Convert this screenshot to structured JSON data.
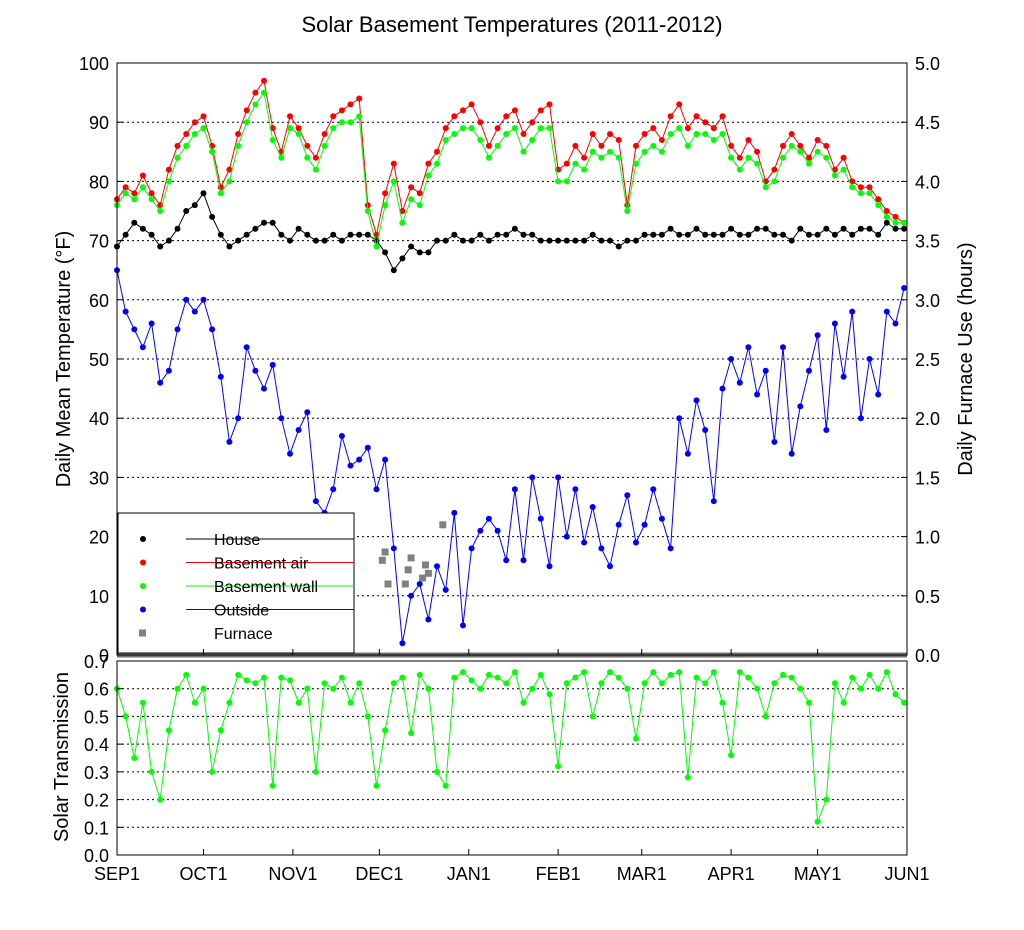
{
  "chart_data": [
    {
      "type": "line",
      "title": "Solar Basement Temperatures (2011-2012)",
      "ylabel": "Daily Mean Temperature (°F)",
      "y2label": "Daily Furnace Use (hours)",
      "ylim": [
        0,
        100
      ],
      "y2lim": [
        0.0,
        5.0
      ],
      "yticks": [
        "0",
        "10",
        "20",
        "30",
        "40",
        "50",
        "60",
        "70",
        "80",
        "90",
        "100"
      ],
      "y2ticks": [
        "0.0",
        "0.5",
        "1.0",
        "1.5",
        "2.0",
        "2.5",
        "3.0",
        "3.5",
        "4.0",
        "4.5",
        "5.0"
      ],
      "xlim_days": [
        0,
        274
      ],
      "grid": true,
      "legend_position": "bottom-left",
      "legend": [
        {
          "name": "House",
          "color": "#000000"
        },
        {
          "name": "Basement air",
          "color": "#ff0000"
        },
        {
          "name": "Basement wall",
          "color": "#00ff00"
        },
        {
          "name": "Outside",
          "color": "#0000ff"
        },
        {
          "name": "Furnace",
          "color": "#808080"
        }
      ],
      "series": [
        {
          "name": "House",
          "color": "#000000",
          "x": [
            0,
            3,
            6,
            9,
            12,
            15,
            18,
            21,
            24,
            27,
            30,
            33,
            36,
            39,
            42,
            45,
            48,
            51,
            54,
            57,
            60,
            63,
            66,
            69,
            72,
            75,
            78,
            81,
            84,
            87,
            90,
            93,
            96,
            99,
            102,
            105,
            108,
            111,
            114,
            117,
            120,
            123,
            126,
            129,
            132,
            135,
            138,
            141,
            144,
            147,
            150,
            153,
            156,
            159,
            162,
            165,
            168,
            171,
            174,
            177,
            180,
            183,
            186,
            189,
            192,
            195,
            198,
            201,
            204,
            207,
            210,
            213,
            216,
            219,
            222,
            225,
            228,
            231,
            234,
            237,
            240,
            243,
            246,
            249,
            252,
            255,
            258,
            261,
            264,
            267,
            270,
            273
          ],
          "values": [
            69,
            71,
            73,
            72,
            71,
            69,
            70,
            72,
            75,
            76,
            78,
            74,
            71,
            69,
            70,
            71,
            72,
            73,
            73,
            71,
            70,
            72,
            71,
            70,
            70,
            71,
            70,
            71,
            71,
            71,
            70,
            68,
            65,
            67,
            69,
            68,
            68,
            70,
            70,
            71,
            70,
            70,
            71,
            70,
            71,
            71,
            72,
            71,
            71,
            70,
            70,
            70,
            70,
            70,
            70,
            71,
            70,
            70,
            69,
            70,
            70,
            71,
            71,
            71,
            72,
            71,
            71,
            72,
            71,
            71,
            71,
            72,
            71,
            71,
            72,
            72,
            71,
            71,
            70,
            72,
            71,
            71,
            72,
            71,
            72,
            71,
            72,
            72,
            71,
            73,
            72,
            72
          ]
        },
        {
          "name": "Basement air",
          "color": "#ff0000",
          "x": [
            0,
            3,
            6,
            9,
            12,
            15,
            18,
            21,
            24,
            27,
            30,
            33,
            36,
            39,
            42,
            45,
            48,
            51,
            54,
            57,
            60,
            63,
            66,
            69,
            72,
            75,
            78,
            81,
            84,
            87,
            90,
            93,
            96,
            99,
            102,
            105,
            108,
            111,
            114,
            117,
            120,
            123,
            126,
            129,
            132,
            135,
            138,
            141,
            144,
            147,
            150,
            153,
            156,
            159,
            162,
            165,
            168,
            171,
            174,
            177,
            180,
            183,
            186,
            189,
            192,
            195,
            198,
            201,
            204,
            207,
            210,
            213,
            216,
            219,
            222,
            225,
            228,
            231,
            234,
            237,
            240,
            243,
            246,
            249,
            252,
            255,
            258,
            261,
            264,
            267,
            270,
            273
          ],
          "values": [
            77,
            79,
            78,
            81,
            78,
            76,
            82,
            86,
            88,
            90,
            91,
            86,
            79,
            82,
            88,
            92,
            95,
            97,
            89,
            85,
            91,
            89,
            86,
            84,
            88,
            91,
            92,
            93,
            94,
            76,
            71,
            78,
            83,
            75,
            79,
            78,
            83,
            85,
            89,
            91,
            92,
            93,
            90,
            86,
            89,
            91,
            92,
            88,
            90,
            92,
            93,
            82,
            83,
            86,
            84,
            88,
            86,
            88,
            87,
            76,
            86,
            88,
            89,
            87,
            91,
            93,
            89,
            91,
            90,
            89,
            91,
            86,
            84,
            87,
            85,
            80,
            82,
            86,
            88,
            86,
            84,
            87,
            86,
            82,
            84,
            80,
            79,
            79,
            77,
            75,
            74,
            73
          ]
        },
        {
          "name": "Basement wall",
          "color": "#00ff00",
          "x": [
            0,
            3,
            6,
            9,
            12,
            15,
            18,
            21,
            24,
            27,
            30,
            33,
            36,
            39,
            42,
            45,
            48,
            51,
            54,
            57,
            60,
            63,
            66,
            69,
            72,
            75,
            78,
            81,
            84,
            87,
            90,
            93,
            96,
            99,
            102,
            105,
            108,
            111,
            114,
            117,
            120,
            123,
            126,
            129,
            132,
            135,
            138,
            141,
            144,
            147,
            150,
            153,
            156,
            159,
            162,
            165,
            168,
            171,
            174,
            177,
            180,
            183,
            186,
            189,
            192,
            195,
            198,
            201,
            204,
            207,
            210,
            213,
            216,
            219,
            222,
            225,
            228,
            231,
            234,
            237,
            240,
            243,
            246,
            249,
            252,
            255,
            258,
            261,
            264,
            267,
            270,
            273
          ],
          "values": [
            76,
            78,
            77,
            79,
            77,
            75,
            80,
            84,
            86,
            88,
            89,
            85,
            78,
            80,
            86,
            90,
            93,
            95,
            87,
            84,
            89,
            88,
            84,
            82,
            86,
            89,
            90,
            90,
            91,
            75,
            69,
            76,
            80,
            73,
            77,
            76,
            81,
            83,
            87,
            88,
            89,
            89,
            87,
            84,
            86,
            88,
            89,
            85,
            87,
            89,
            89,
            80,
            80,
            83,
            82,
            85,
            84,
            85,
            84,
            75,
            83,
            85,
            86,
            85,
            88,
            89,
            86,
            88,
            88,
            87,
            88,
            84,
            82,
            84,
            83,
            79,
            80,
            84,
            86,
            85,
            83,
            85,
            84,
            81,
            82,
            79,
            78,
            78,
            76,
            74,
            73,
            73
          ]
        },
        {
          "name": "Outside",
          "color": "#0000ff",
          "x": [
            0,
            3,
            6,
            9,
            12,
            15,
            18,
            21,
            24,
            27,
            30,
            33,
            36,
            39,
            42,
            45,
            48,
            51,
            54,
            57,
            60,
            63,
            66,
            69,
            72,
            75,
            78,
            81,
            84,
            87,
            90,
            93,
            96,
            99,
            102,
            105,
            108,
            111,
            114,
            117,
            120,
            123,
            126,
            129,
            132,
            135,
            138,
            141,
            144,
            147,
            150,
            153,
            156,
            159,
            162,
            165,
            168,
            171,
            174,
            177,
            180,
            183,
            186,
            189,
            192,
            195,
            198,
            201,
            204,
            207,
            210,
            213,
            216,
            219,
            222,
            225,
            228,
            231,
            234,
            237,
            240,
            243,
            246,
            249,
            252,
            255,
            258,
            261,
            264,
            267,
            270,
            273
          ],
          "values": [
            65,
            58,
            55,
            52,
            56,
            46,
            48,
            55,
            60,
            58,
            60,
            55,
            47,
            36,
            40,
            52,
            48,
            45,
            49,
            40,
            34,
            38,
            41,
            26,
            24,
            28,
            37,
            32,
            33,
            35,
            28,
            33,
            18,
            2,
            10,
            12,
            6,
            15,
            11,
            24,
            5,
            18,
            21,
            23,
            21,
            16,
            28,
            16,
            30,
            23,
            15,
            30,
            20,
            28,
            19,
            25,
            18,
            15,
            22,
            27,
            19,
            22,
            28,
            23,
            18,
            40,
            34,
            43,
            38,
            26,
            45,
            50,
            46,
            52,
            44,
            48,
            36,
            52,
            34,
            42,
            48,
            54,
            38,
            56,
            47,
            58,
            40,
            50,
            44,
            58,
            56,
            62
          ]
        }
      ],
      "furnace_hours": {
        "x": [
          92,
          93,
          94,
          100,
          101,
          102,
          106,
          107,
          108,
          113
        ],
        "values": [
          0.8,
          0.87,
          0.6,
          0.6,
          0.72,
          0.82,
          0.65,
          0.76,
          0.69,
          1.1
        ]
      }
    },
    {
      "type": "line",
      "ylabel": "Solar Transmission",
      "ylim": [
        0.0,
        0.7
      ],
      "yticks": [
        "0.0",
        "0.1",
        "0.2",
        "0.3",
        "0.4",
        "0.5",
        "0.6",
        "0.7"
      ],
      "xticks": [
        "SEP1",
        "OCT1",
        "NOV1",
        "DEC1",
        "JAN1",
        "FEB1",
        "MAR1",
        "APR1",
        "MAY1",
        "JUN1"
      ],
      "xtick_days": [
        0,
        30,
        61,
        91,
        122,
        153,
        182,
        213,
        243,
        274
      ],
      "grid": true,
      "series": [
        {
          "name": "Solar Transmission",
          "color": "#00ff00",
          "x": [
            0,
            3,
            6,
            9,
            12,
            15,
            18,
            21,
            24,
            27,
            30,
            33,
            36,
            39,
            42,
            45,
            48,
            51,
            54,
            57,
            60,
            63,
            66,
            69,
            72,
            75,
            78,
            81,
            84,
            87,
            90,
            93,
            96,
            99,
            102,
            105,
            108,
            111,
            114,
            117,
            120,
            123,
            126,
            129,
            132,
            135,
            138,
            141,
            144,
            147,
            150,
            153,
            156,
            159,
            162,
            165,
            168,
            171,
            174,
            177,
            180,
            183,
            186,
            189,
            192,
            195,
            198,
            201,
            204,
            207,
            210,
            213,
            216,
            219,
            222,
            225,
            228,
            231,
            234,
            237,
            240,
            243,
            246,
            249,
            252,
            255,
            258,
            261,
            264,
            267,
            270,
            273
          ],
          "values": [
            0.6,
            0.5,
            0.35,
            0.55,
            0.3,
            0.2,
            0.45,
            0.6,
            0.65,
            0.55,
            0.6,
            0.3,
            0.45,
            0.55,
            0.65,
            0.63,
            0.62,
            0.64,
            0.25,
            0.64,
            0.63,
            0.55,
            0.6,
            0.3,
            0.62,
            0.6,
            0.64,
            0.55,
            0.62,
            0.5,
            0.25,
            0.45,
            0.62,
            0.64,
            0.44,
            0.65,
            0.6,
            0.3,
            0.25,
            0.64,
            0.66,
            0.63,
            0.6,
            0.65,
            0.64,
            0.62,
            0.66,
            0.55,
            0.6,
            0.65,
            0.58,
            0.32,
            0.62,
            0.64,
            0.66,
            0.5,
            0.62,
            0.66,
            0.64,
            0.6,
            0.42,
            0.62,
            0.66,
            0.62,
            0.65,
            0.66,
            0.28,
            0.64,
            0.62,
            0.66,
            0.55,
            0.36,
            0.66,
            0.64,
            0.6,
            0.5,
            0.62,
            0.65,
            0.64,
            0.6,
            0.55,
            0.12,
            0.2,
            0.62,
            0.55,
            0.64,
            0.6,
            0.65,
            0.6,
            0.66,
            0.58,
            0.55
          ]
        }
      ]
    }
  ]
}
